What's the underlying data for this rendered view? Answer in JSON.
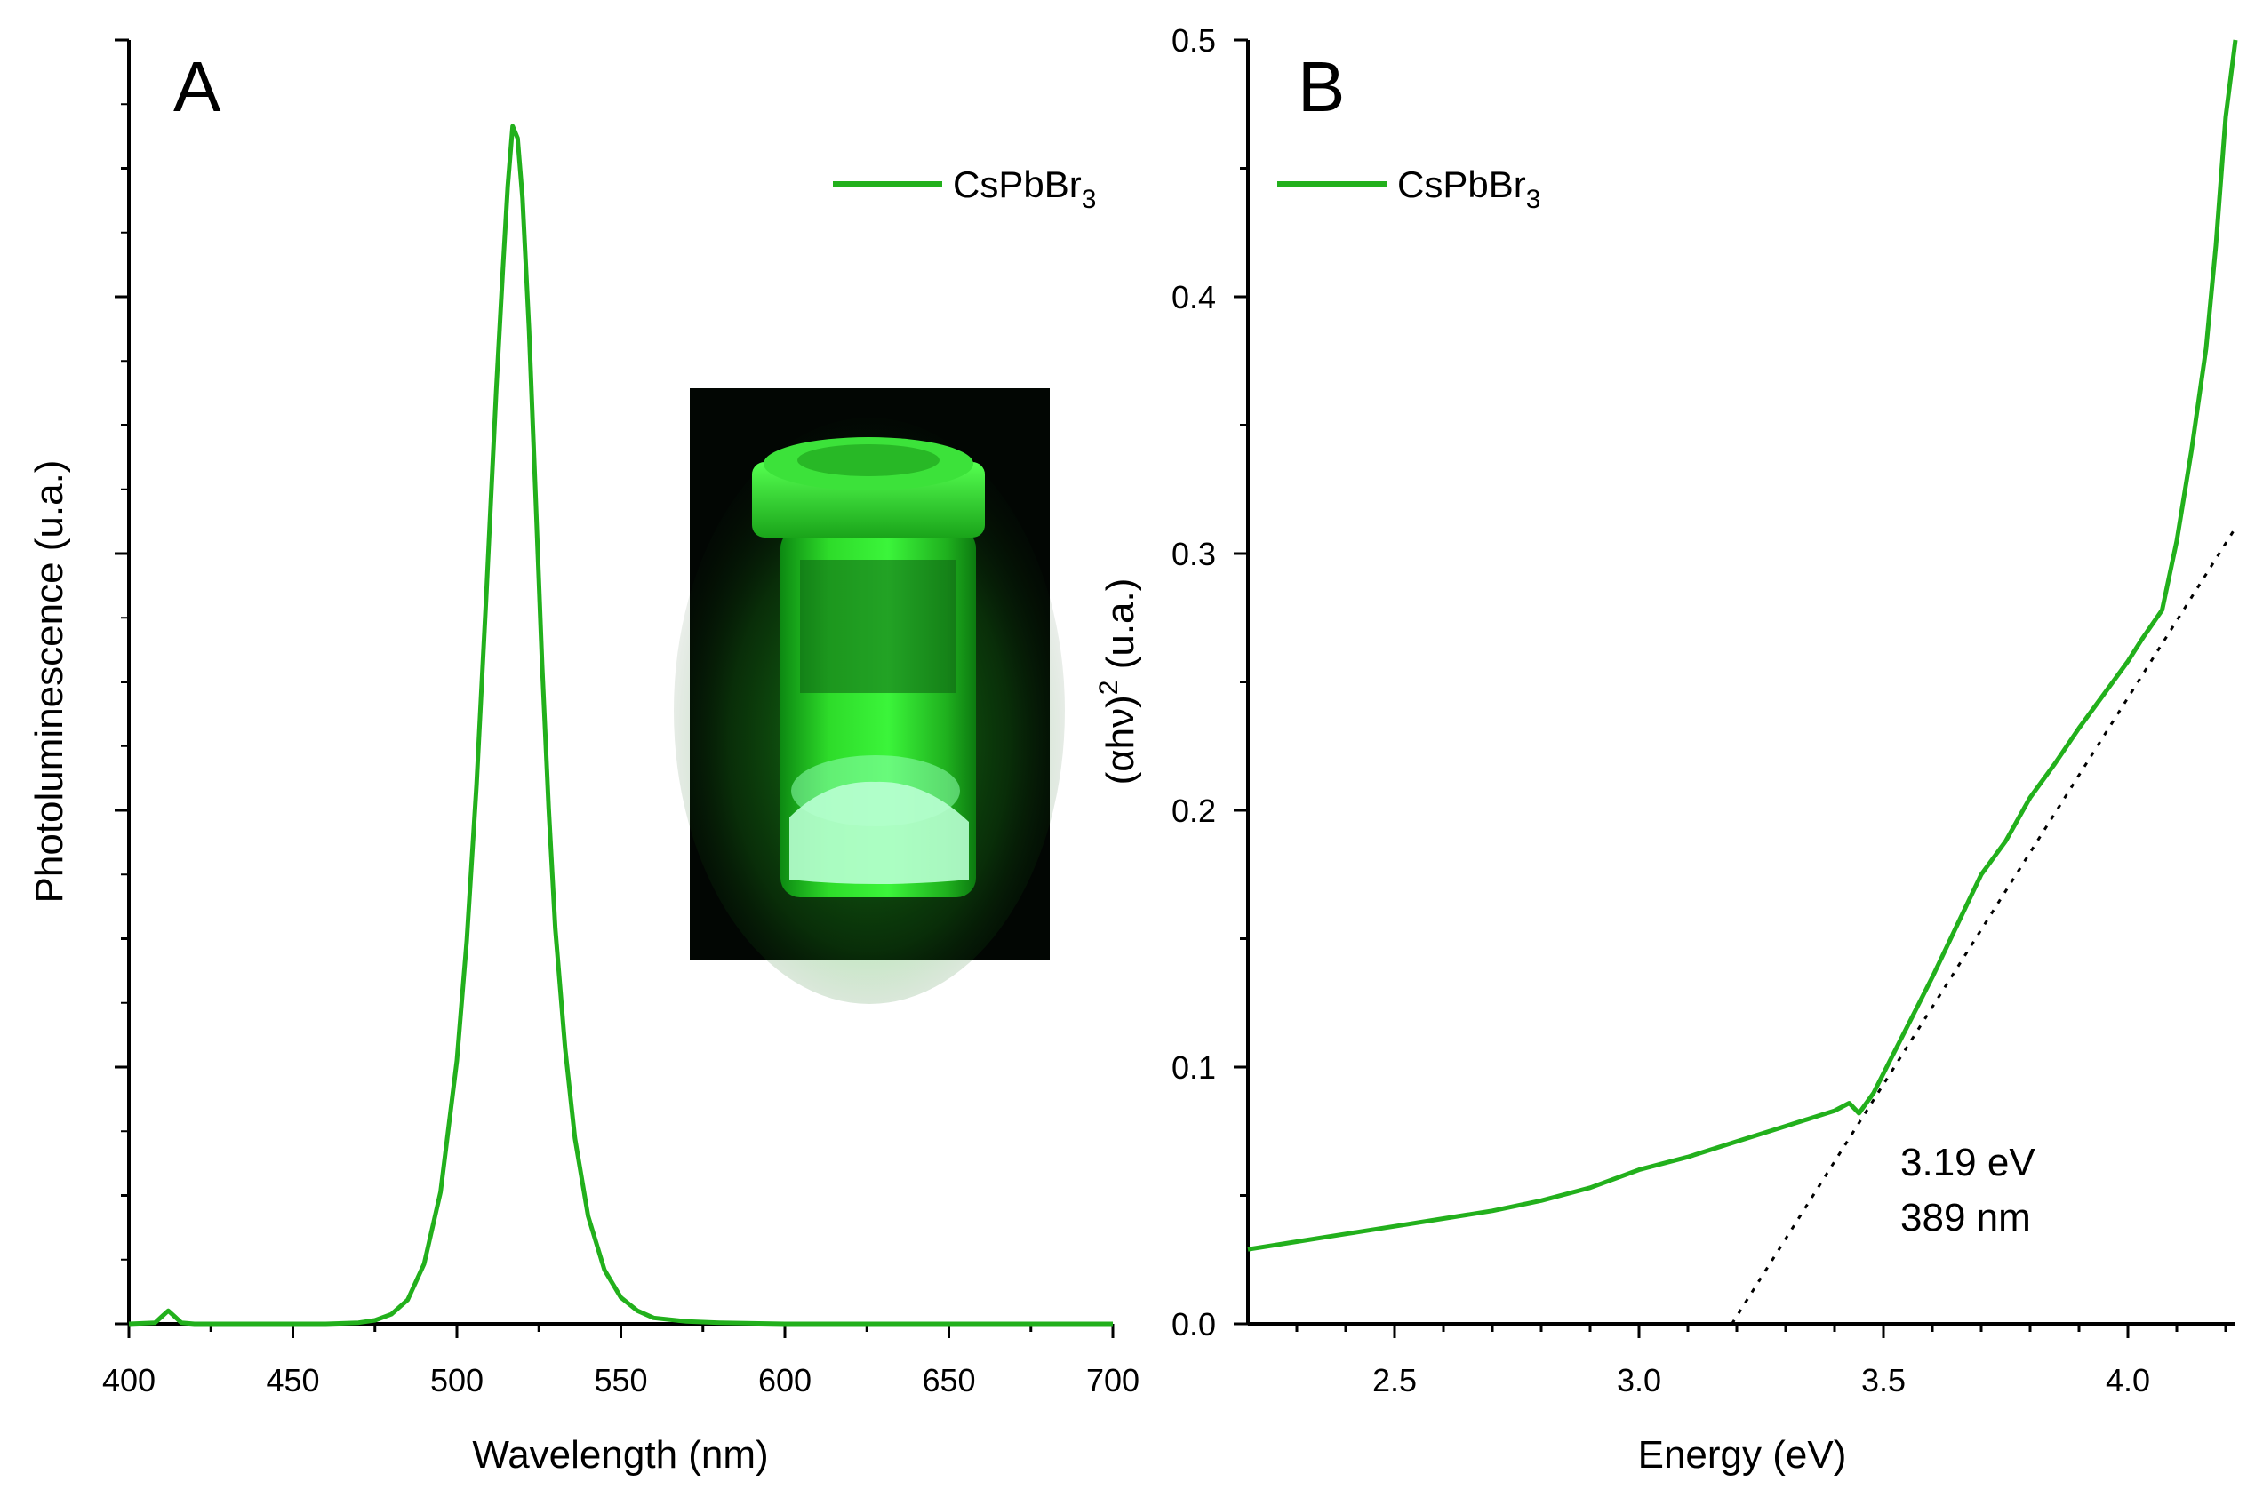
{
  "chart_data": [
    {
      "panel": "A",
      "type": "line",
      "panel_label": "A",
      "xlabel": "Wavelength (nm)",
      "ylabel": "Photoluminescence (u.a.)",
      "xlim": [
        400,
        700
      ],
      "ylim": [
        0,
        1.0
      ],
      "x_ticks": [
        400,
        450,
        500,
        550,
        600,
        650,
        700
      ],
      "y_tick_labels_shown": false,
      "grid": false,
      "legend_position": "top-right",
      "series": [
        {
          "name": "CsPbBr3",
          "color": "#22b01c",
          "points": [
            [
              400,
              0.0
            ],
            [
              408,
              0.001
            ],
            [
              410,
              0.006
            ],
            [
              412,
              0.011
            ],
            [
              414,
              0.006
            ],
            [
              416,
              0.001
            ],
            [
              420,
              0.0
            ],
            [
              440,
              0.0
            ],
            [
              460,
              0.0
            ],
            [
              470,
              0.001
            ],
            [
              475,
              0.003
            ],
            [
              480,
              0.008
            ],
            [
              485,
              0.02
            ],
            [
              490,
              0.05
            ],
            [
              495,
              0.11
            ],
            [
              500,
              0.22
            ],
            [
              503,
              0.32
            ],
            [
              506,
              0.45
            ],
            [
              509,
              0.61
            ],
            [
              512,
              0.78
            ],
            [
              514,
              0.88
            ],
            [
              515.5,
              0.95
            ],
            [
              517,
              1.0
            ],
            [
              518.5,
              0.99
            ],
            [
              520,
              0.94
            ],
            [
              522,
              0.83
            ],
            [
              524,
              0.69
            ],
            [
              526,
              0.55
            ],
            [
              528,
              0.43
            ],
            [
              530,
              0.33
            ],
            [
              533,
              0.23
            ],
            [
              536,
              0.155
            ],
            [
              540,
              0.09
            ],
            [
              545,
              0.045
            ],
            [
              550,
              0.022
            ],
            [
              555,
              0.011
            ],
            [
              560,
              0.005
            ],
            [
              570,
              0.002
            ],
            [
              580,
              0.001
            ],
            [
              600,
              0.0
            ],
            [
              650,
              0.0
            ],
            [
              700,
              0.0
            ]
          ]
        }
      ]
    },
    {
      "panel": "B",
      "type": "line",
      "panel_label": "B",
      "xlabel": "Energy (eV)",
      "ylabel": "(αhν)² (u.a.)",
      "ylabel_parts": [
        "(αhν)",
        "2",
        " (u.a.)"
      ],
      "xlim": [
        2.2,
        4.22
      ],
      "ylim": [
        0.0,
        0.5
      ],
      "x_ticks": [
        2.5,
        3.0,
        3.5,
        4.0
      ],
      "x_tick_labels": [
        "2.5",
        "3.0",
        "3.5",
        "4.0"
      ],
      "y_ticks": [
        0.0,
        0.1,
        0.2,
        0.3,
        0.4,
        0.5
      ],
      "y_tick_labels": [
        "0.0",
        "0.1",
        "0.2",
        "0.3",
        "0.4",
        "0.5"
      ],
      "grid": false,
      "legend_position": "top-left",
      "series": [
        {
          "name": "CsPbBr3",
          "color": "#22b01c",
          "points": [
            [
              2.2,
              0.029
            ],
            [
              2.3,
              0.032
            ],
            [
              2.4,
              0.035
            ],
            [
              2.5,
              0.038
            ],
            [
              2.6,
              0.041
            ],
            [
              2.7,
              0.044
            ],
            [
              2.8,
              0.048
            ],
            [
              2.9,
              0.053
            ],
            [
              3.0,
              0.06
            ],
            [
              3.1,
              0.065
            ],
            [
              3.2,
              0.071
            ],
            [
              3.3,
              0.077
            ],
            [
              3.4,
              0.083
            ],
            [
              3.43,
              0.086
            ],
            [
              3.45,
              0.082
            ],
            [
              3.48,
              0.09
            ],
            [
              3.52,
              0.105
            ],
            [
              3.56,
              0.12
            ],
            [
              3.6,
              0.135
            ],
            [
              3.65,
              0.155
            ],
            [
              3.7,
              0.175
            ],
            [
              3.75,
              0.188
            ],
            [
              3.8,
              0.205
            ],
            [
              3.85,
              0.218
            ],
            [
              3.9,
              0.232
            ],
            [
              3.95,
              0.245
            ],
            [
              4.0,
              0.258
            ],
            [
              4.03,
              0.267
            ],
            [
              4.07,
              0.278
            ],
            [
              4.1,
              0.305
            ],
            [
              4.13,
              0.34
            ],
            [
              4.16,
              0.38
            ],
            [
              4.18,
              0.42
            ],
            [
              4.2,
              0.47
            ],
            [
              4.22,
              0.5
            ]
          ]
        }
      ],
      "tangent_line": {
        "style": "dotted",
        "x": [
          3.19,
          4.22
        ],
        "y": [
          0.0,
          0.31
        ]
      },
      "annotations": [
        "3.19 eV",
        "389 nm"
      ]
    }
  ],
  "inset_photo": {
    "description_visible": "glowing green vial",
    "colors": {
      "background": "#020603",
      "glow": "#2cff2a",
      "powder": "#b8ffd2"
    }
  }
}
